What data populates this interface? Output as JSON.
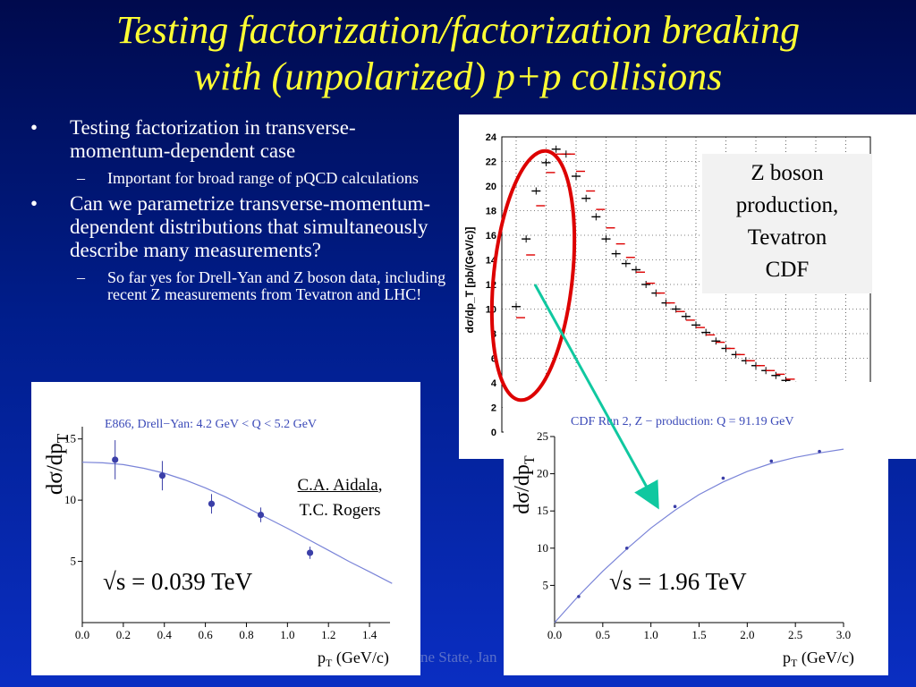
{
  "slide": {
    "title_line1": "Testing factorization/factorization breaking",
    "title_line2": "with (unpolarized) p+p collisions",
    "bullets": [
      {
        "text": "Testing factorization in transverse-momentum-dependent case",
        "sub": [
          "Important for broad range of pQCD calculations"
        ]
      },
      {
        "text": "Can we parametrize transverse-momentum-dependent distributions that simultaneously describe many measurements?",
        "sub": [
          "So far yes for Drell-Yan and Z boson data, including recent Z measurements from Tevatron and LHC!"
        ]
      }
    ],
    "cdf_box": [
      "Z boson",
      "production,",
      "Tevatron",
      "CDF"
    ],
    "credit": {
      "name1": "C.A. Aidala",
      "sep": ",",
      "name2": "T.C. Rogers"
    },
    "footer": "ne State, Jan",
    "colors": {
      "title": "#ffff33",
      "bullet_text": "#ffffff",
      "oval": "#dd0000",
      "arrow": "#10c8a0",
      "fit_curve": "#7a84d8",
      "points": "#3b3fa8"
    }
  },
  "chart_data": [
    {
      "type": "scatter",
      "title": "",
      "ylabel": "dσ/dp_T [pb/(GeV/c)]",
      "ylim": [
        0,
        24
      ],
      "yticks": [
        "0",
        "2",
        "4",
        "6",
        "8",
        "10",
        "12",
        "14",
        "16",
        "18",
        "20",
        "22",
        "24"
      ],
      "series": [
        {
          "values": [
            10.2,
            15.7,
            19.6,
            21.9,
            23.0,
            22.6,
            20.8,
            19.0,
            17.5,
            15.7,
            14.5,
            13.7,
            13.2,
            12.0,
            11.3,
            10.5,
            10.0,
            9.4,
            8.7,
            8.1,
            7.4,
            6.8,
            6.3,
            5.8,
            5.4,
            5.0,
            4.6,
            4.2,
            3.8,
            3.5,
            3.2,
            2.9,
            2.6,
            2.4,
            2.2,
            2.0
          ]
        },
        {
          "values": [
            9.3,
            14.4,
            18.4,
            21.1,
            22.6,
            22.6,
            21.2,
            19.6,
            18.1,
            16.6,
            15.3,
            14.2,
            13.0,
            12.1,
            11.3,
            10.5,
            9.8,
            9.1,
            8.5,
            7.9,
            7.3,
            6.8,
            6.3,
            5.8,
            5.4,
            5.0,
            4.7,
            4.3,
            4.0,
            3.7,
            3.4,
            3.1,
            2.8,
            2.6,
            2.4,
            2.2
          ]
        }
      ]
    },
    {
      "type": "scatter",
      "title": "E866,   Drell−Yan: 4.2 GeV < Q < 5.2 GeV",
      "xlabel": "p",
      "xlabel_sub": "T",
      "xlabel_unit": " (GeV/c)",
      "ylabel": "dσ/dp",
      "ylabel_sub": "T",
      "annotation": "√s = 0.039 TeV",
      "xlim": [
        0,
        1.5
      ],
      "ylim": [
        0,
        16
      ],
      "xticks": [
        "0.0",
        "0.2",
        "0.4",
        "0.6",
        "0.8",
        "1.0",
        "1.2",
        "1.4"
      ],
      "yticks": [
        "5",
        "10",
        "15"
      ],
      "points": [
        {
          "x": 0.16,
          "y": 13.3,
          "err": 1.6
        },
        {
          "x": 0.39,
          "y": 12.0,
          "err": 1.2
        },
        {
          "x": 0.63,
          "y": 9.7,
          "err": 0.8
        },
        {
          "x": 0.87,
          "y": 8.8,
          "err": 0.6
        },
        {
          "x": 1.11,
          "y": 5.7,
          "err": 0.5
        }
      ],
      "fit": [
        [
          0.0,
          13.1
        ],
        [
          0.1,
          13.05
        ],
        [
          0.2,
          12.9
        ],
        [
          0.3,
          12.6
        ],
        [
          0.4,
          12.2
        ],
        [
          0.5,
          11.65
        ],
        [
          0.6,
          11.0
        ],
        [
          0.7,
          10.25
        ],
        [
          0.8,
          9.4
        ],
        [
          0.9,
          8.55
        ],
        [
          1.0,
          7.7
        ],
        [
          1.1,
          6.8
        ],
        [
          1.2,
          5.9
        ],
        [
          1.3,
          5.0
        ],
        [
          1.4,
          4.15
        ],
        [
          1.51,
          3.2
        ]
      ]
    },
    {
      "type": "scatter",
      "title": "CDF Run 2,   Z − production: Q = 91.19 GeV",
      "xlabel": "p",
      "xlabel_sub": "T",
      "xlabel_unit": " (GeV/c)",
      "ylabel": "dσ/dp",
      "ylabel_sub": "T",
      "annotation": "√s = 1.96 TeV",
      "xlim": [
        0,
        3.0
      ],
      "ylim": [
        0,
        25
      ],
      "xticks": [
        "0.0",
        "0.5",
        "1.0",
        "1.5",
        "2.0",
        "2.5",
        "3.0"
      ],
      "yticks": [
        "5",
        "10",
        "15",
        "20",
        "25"
      ],
      "points": [
        {
          "x": 0.25,
          "y": 3.5
        },
        {
          "x": 0.75,
          "y": 10.0
        },
        {
          "x": 1.25,
          "y": 15.6
        },
        {
          "x": 1.75,
          "y": 19.4
        },
        {
          "x": 2.25,
          "y": 21.7
        },
        {
          "x": 2.75,
          "y": 23.0
        }
      ],
      "fit": [
        [
          0.0,
          0.0
        ],
        [
          0.25,
          3.6
        ],
        [
          0.5,
          6.9
        ],
        [
          0.75,
          9.9
        ],
        [
          1.0,
          12.7
        ],
        [
          1.25,
          15.1
        ],
        [
          1.5,
          17.2
        ],
        [
          1.75,
          18.9
        ],
        [
          2.0,
          20.3
        ],
        [
          2.25,
          21.4
        ],
        [
          2.5,
          22.2
        ],
        [
          2.75,
          22.8
        ],
        [
          3.0,
          23.3
        ]
      ]
    }
  ]
}
